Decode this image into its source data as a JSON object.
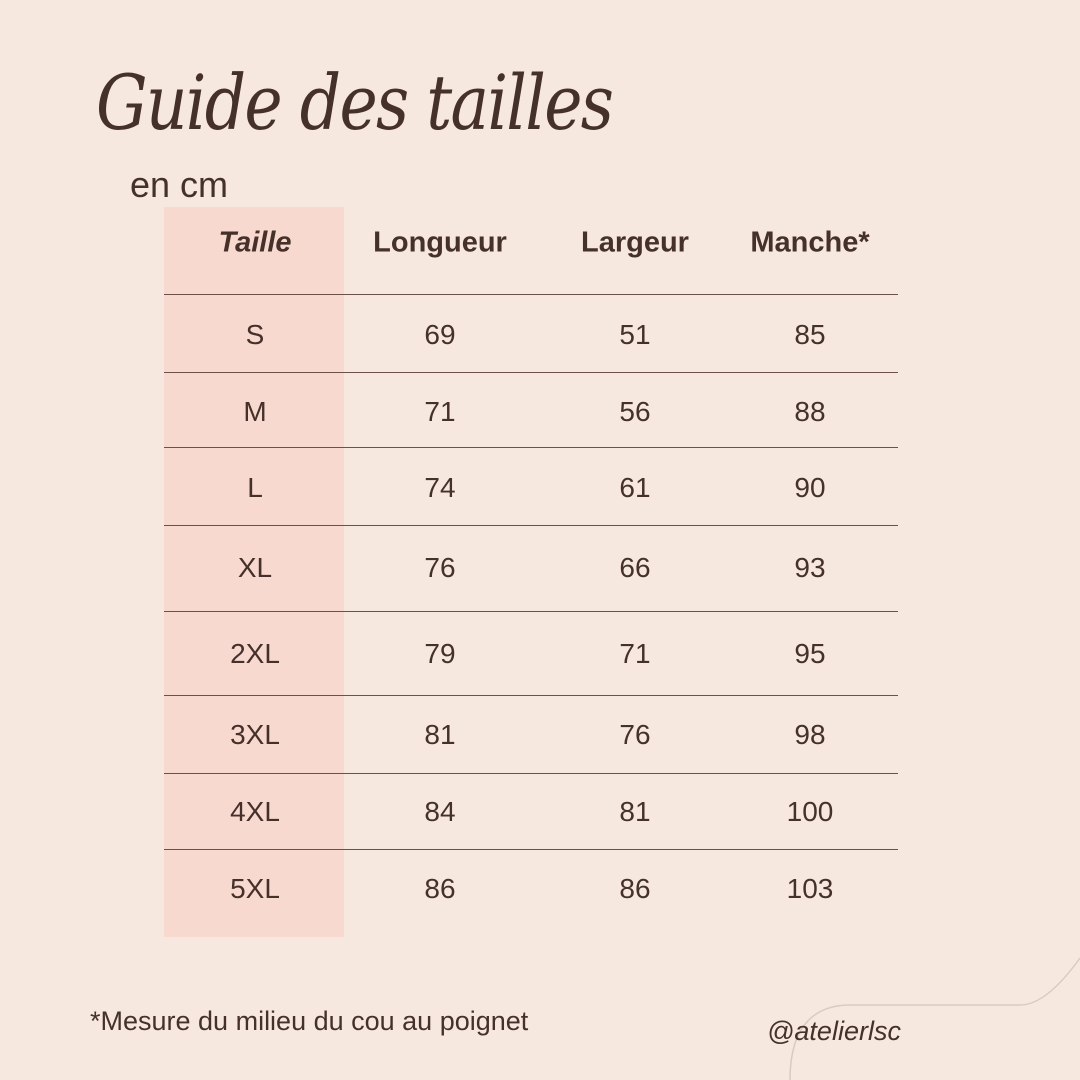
{
  "title": "Guide des tailles",
  "subtitle": "en cm",
  "table": {
    "headers": [
      "Taille",
      "Longueur",
      "Largeur",
      "Manche*"
    ],
    "rows": [
      [
        "S",
        "69",
        "51",
        "85"
      ],
      [
        "M",
        "71",
        "56",
        "88"
      ],
      [
        "L",
        "74",
        "61",
        "90"
      ],
      [
        "XL",
        "76",
        "66",
        "93"
      ],
      [
        "2XL",
        "79",
        "71",
        "95"
      ],
      [
        "3XL",
        "81",
        "76",
        "98"
      ],
      [
        "4XL",
        "84",
        "81",
        "100"
      ],
      [
        "5XL",
        "86",
        "86",
        "103"
      ]
    ]
  },
  "footnote": "*Mesure du milieu du cou au poignet",
  "handle": "@atelierlsc",
  "colors": {
    "background": "#f6e8df",
    "highlight_column": "#f7d9d0",
    "text": "#45312a"
  }
}
